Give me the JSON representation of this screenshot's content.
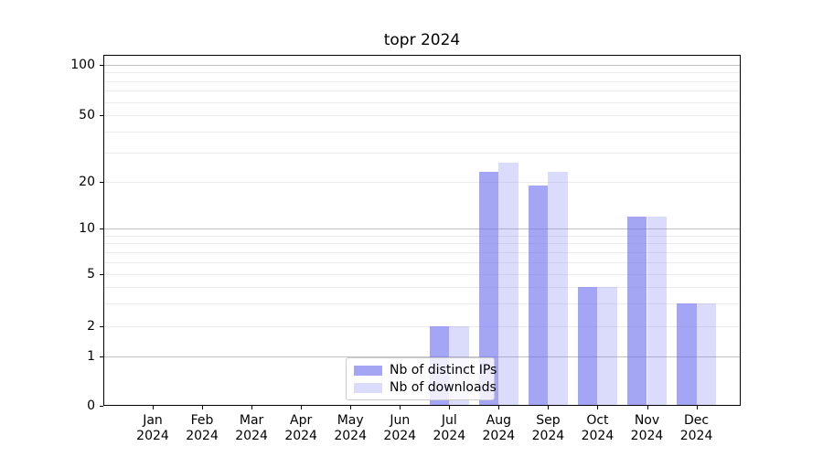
{
  "title": "topr 2024",
  "chart_data": {
    "type": "bar",
    "title": "topr 2024",
    "categories": [
      "Jan 2024",
      "Feb 2024",
      "Mar 2024",
      "Apr 2024",
      "May 2024",
      "Jun 2024",
      "Jul 2024",
      "Aug 2024",
      "Sep 2024",
      "Oct 2024",
      "Nov 2024",
      "Dec 2024"
    ],
    "series": [
      {
        "name": "Nb of distinct IPs",
        "color": "rgba(110,110,240,0.62)",
        "values": [
          0,
          0,
          0,
          0,
          0,
          0,
          2,
          23,
          19,
          4,
          12,
          3
        ]
      },
      {
        "name": "Nb of downloads",
        "color": "rgba(110,110,240,0.25)",
        "values": [
          0,
          0,
          0,
          0,
          0,
          0,
          2,
          26,
          23,
          4,
          12,
          3
        ]
      }
    ],
    "xlabel": "",
    "ylabel": "",
    "y_axis": {
      "scale": "symlog",
      "ticks": [
        0,
        1,
        2,
        5,
        10,
        20,
        50,
        100
      ],
      "major_gridlines": [
        1,
        10,
        100
      ],
      "minor_gridlines": [
        2,
        3,
        4,
        5,
        6,
        7,
        8,
        9,
        20,
        30,
        40,
        50,
        60,
        70,
        80,
        90
      ],
      "ylim": [
        0,
        115
      ]
    },
    "grid": true,
    "legend_position": "lower-center"
  },
  "legend": {
    "items": [
      "Nb of distinct IPs",
      "Nb of downloads"
    ]
  }
}
